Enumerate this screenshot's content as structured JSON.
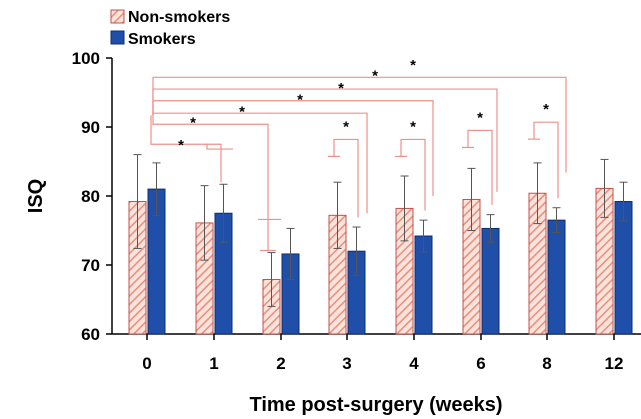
{
  "chart_data": {
    "type": "bar",
    "xlabel": "Time post-surgery (weeks)",
    "ylabel": "ISQ",
    "ylim": [
      60,
      100
    ],
    "yticks": [
      60,
      70,
      80,
      90,
      100
    ],
    "categories": [
      "0",
      "1",
      "2",
      "3",
      "4",
      "6",
      "8",
      "12"
    ],
    "series": [
      {
        "name": "Non-smokers",
        "color": "#e98e7a",
        "pattern": "diagonal-hatch",
        "values": [
          79.2,
          76.1,
          67.9,
          77.2,
          78.2,
          79.5,
          80.4,
          81.1
        ],
        "errors": [
          6.8,
          5.4,
          3.9,
          4.8,
          4.7,
          4.5,
          4.4,
          4.2
        ]
      },
      {
        "name": "Smokers",
        "color": "#1f4fa8",
        "pattern": "solid",
        "values": [
          81.0,
          77.5,
          71.6,
          72.0,
          74.2,
          75.3,
          76.5,
          79.2
        ],
        "errors": [
          3.8,
          4.2,
          3.7,
          3.5,
          2.3,
          2.0,
          1.8,
          2.8
        ]
      }
    ],
    "significance_marker": "*",
    "significance_brackets": [
      {
        "from": "0",
        "to": "2",
        "star_y": 88.1
      },
      {
        "from": "0",
        "to": "2",
        "star_y": 91.4
      },
      {
        "from": "0",
        "to": "3",
        "star_y": 93.0
      },
      {
        "from": "0",
        "to": "4",
        "star_y": 94.7
      },
      {
        "from": "0",
        "to": "6",
        "star_y": 96.4
      },
      {
        "from": "0",
        "to": "8",
        "star_y": 98.2
      },
      {
        "from": "3",
        "to": "3",
        "star_y": 90.8
      },
      {
        "from": "4",
        "to": "4",
        "star_y": 90.8
      },
      {
        "from": "6",
        "to": "6",
        "star_y": 92.1
      },
      {
        "from": "8",
        "to": "8",
        "star_y": 93.3
      }
    ],
    "legend_position": "top-left",
    "bracket_color": "#f0908a"
  }
}
